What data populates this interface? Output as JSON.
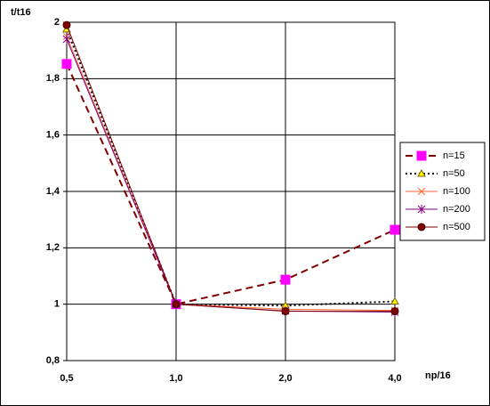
{
  "chart_data": {
    "type": "line",
    "y_label": "t/t16",
    "x_label": "np/16",
    "categories": [
      "0,5",
      "1,0",
      "2,0",
      "4,0"
    ],
    "ylim": [
      0.8,
      2
    ],
    "yticks": [
      {
        "value": 0.8,
        "label": "0,8"
      },
      1,
      {
        "value": 1.2,
        "label": "1,2"
      },
      {
        "value": 1.4,
        "label": "1,4"
      },
      {
        "value": 1.6,
        "label": "1,6"
      },
      {
        "value": 1.8,
        "label": "1,8"
      },
      2
    ],
    "grid": true,
    "legend": "right",
    "series": [
      {
        "name": "n=15",
        "color": "#800000",
        "marker_color": "#ff00ff",
        "marker": "square",
        "dash": "dashed",
        "values": [
          1.852,
          1.0,
          1.087,
          1.264
        ]
      },
      {
        "name": "n=50",
        "color": "#000000",
        "marker_color": "#ffff00",
        "marker": "triangle",
        "dash": "dotted",
        "values": [
          1.975,
          1.0,
          0.995,
          1.01
        ]
      },
      {
        "name": "n=100",
        "color": "#ff6633",
        "marker_color": "#ff6633",
        "marker": "x",
        "dash": "solid",
        "values": [
          1.95,
          1.0,
          0.982,
          0.978
        ]
      },
      {
        "name": "n=200",
        "color": "#800080",
        "marker_color": "#800080",
        "marker": "star",
        "dash": "solid",
        "values": [
          1.94,
          1.0,
          0.976,
          0.972
        ]
      },
      {
        "name": "n=500",
        "color": "#800000",
        "marker_color": "#800000",
        "marker": "circle",
        "dash": "solid",
        "values": [
          1.99,
          1.0,
          0.975,
          0.975
        ]
      }
    ]
  }
}
